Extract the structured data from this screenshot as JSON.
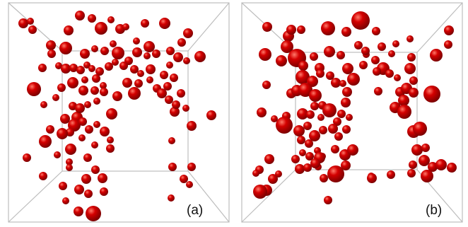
{
  "figure": {
    "panels": [
      {
        "label": "(a)"
      },
      {
        "label": "(b)"
      }
    ],
    "colors": {
      "sphere_base": "#d40000",
      "sphere_highlight": "#ff7a6a",
      "sphere_shadow": "#6e0000",
      "box_edge": "#bdbdbd",
      "background": "#ffffff"
    }
  }
}
